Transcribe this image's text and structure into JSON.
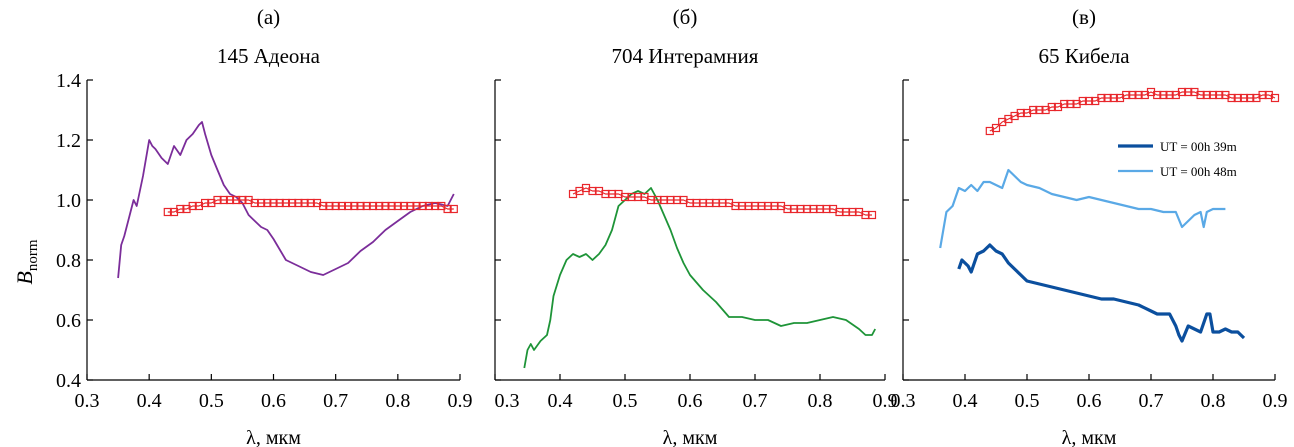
{
  "figure": {
    "ylabel_main": "B",
    "ylabel_sub": "norm",
    "xlabel": "λ, мкм",
    "ytick_labels": [
      "0.4",
      "0.6",
      "0.8",
      "1.0",
      "1.2",
      "1.4"
    ],
    "panels": [
      {
        "tag": "(а)",
        "title": "145 Адеона",
        "xtick_labels": [
          "0.3",
          "0.4",
          "0.5",
          "0.6",
          "0.7",
          "0.8",
          "0.9"
        ]
      },
      {
        "tag": "(б)",
        "title": "704 Интерамния",
        "xtick_labels": [
          "",
          "0.4",
          "0.5",
          "0.6",
          "0.7",
          "0.8",
          "0.9"
        ]
      },
      {
        "tag": "(в)",
        "title": "65 Кибела",
        "xtick_labels": [
          "0.3",
          "0.4",
          "0.5",
          "0.6",
          "0.7",
          "0.8",
          "0.9"
        ]
      }
    ],
    "extra_tick": "0.3",
    "legend": [
      {
        "label": "UT = 00h 39m",
        "color": "#0b4f9e"
      },
      {
        "label": "UT = 00h 48m",
        "color": "#5aa9e6"
      }
    ]
  },
  "chart_data": [
    {
      "type": "line",
      "title": "145 Адеона",
      "xlabel": "λ, мкм",
      "ylabel": "Bnorm",
      "xlim": [
        0.3,
        0.9
      ],
      "ylim": [
        0.4,
        1.4
      ],
      "series": [
        {
          "color": "#7b2d9a",
          "marker": "none",
          "x": [
            0.35,
            0.355,
            0.36,
            0.37,
            0.375,
            0.38,
            0.39,
            0.4,
            0.405,
            0.41,
            0.42,
            0.43,
            0.44,
            0.45,
            0.46,
            0.47,
            0.48,
            0.485,
            0.49,
            0.5,
            0.51,
            0.52,
            0.53,
            0.54,
            0.55,
            0.56,
            0.57,
            0.58,
            0.59,
            0.6,
            0.62,
            0.64,
            0.66,
            0.68,
            0.7,
            0.72,
            0.74,
            0.76,
            0.78,
            0.8,
            0.82,
            0.84,
            0.86,
            0.88,
            0.89
          ],
          "y": [
            0.74,
            0.85,
            0.88,
            0.96,
            1.0,
            0.98,
            1.08,
            1.2,
            1.18,
            1.17,
            1.14,
            1.12,
            1.18,
            1.15,
            1.2,
            1.22,
            1.25,
            1.26,
            1.22,
            1.15,
            1.1,
            1.05,
            1.02,
            1.01,
            0.99,
            0.95,
            0.93,
            0.91,
            0.9,
            0.87,
            0.8,
            0.78,
            0.76,
            0.75,
            0.77,
            0.79,
            0.83,
            0.86,
            0.9,
            0.93,
            0.96,
            0.98,
            0.99,
            0.98,
            1.02
          ]
        },
        {
          "color": "#e8262b",
          "marker": "square",
          "x": [
            0.43,
            0.44,
            0.45,
            0.46,
            0.47,
            0.48,
            0.49,
            0.5,
            0.51,
            0.52,
            0.53,
            0.54,
            0.55,
            0.56,
            0.57,
            0.58,
            0.59,
            0.6,
            0.61,
            0.62,
            0.63,
            0.64,
            0.65,
            0.66,
            0.67,
            0.68,
            0.69,
            0.7,
            0.71,
            0.72,
            0.73,
            0.74,
            0.75,
            0.76,
            0.77,
            0.78,
            0.79,
            0.8,
            0.81,
            0.82,
            0.83,
            0.84,
            0.85,
            0.86,
            0.87,
            0.88,
            0.89
          ],
          "y": [
            0.96,
            0.96,
            0.97,
            0.97,
            0.98,
            0.98,
            0.99,
            0.99,
            1.0,
            1.0,
            1.0,
            1.0,
            1.0,
            1.0,
            0.99,
            0.99,
            0.99,
            0.99,
            0.99,
            0.99,
            0.99,
            0.99,
            0.99,
            0.99,
            0.99,
            0.98,
            0.98,
            0.98,
            0.98,
            0.98,
            0.98,
            0.98,
            0.98,
            0.98,
            0.98,
            0.98,
            0.98,
            0.98,
            0.98,
            0.98,
            0.98,
            0.98,
            0.98,
            0.98,
            0.98,
            0.97,
            0.97
          ]
        }
      ]
    },
    {
      "type": "line",
      "title": "704 Интерамния",
      "xlabel": "λ, мкм",
      "xlim": [
        0.3,
        0.9
      ],
      "ylim": [
        0.4,
        1.4
      ],
      "series": [
        {
          "color": "#1e9438",
          "marker": "none",
          "x": [
            0.345,
            0.35,
            0.355,
            0.36,
            0.37,
            0.38,
            0.385,
            0.39,
            0.4,
            0.41,
            0.42,
            0.43,
            0.44,
            0.45,
            0.46,
            0.47,
            0.48,
            0.49,
            0.5,
            0.51,
            0.52,
            0.53,
            0.54,
            0.55,
            0.56,
            0.57,
            0.58,
            0.59,
            0.6,
            0.62,
            0.64,
            0.66,
            0.68,
            0.7,
            0.72,
            0.74,
            0.76,
            0.78,
            0.8,
            0.82,
            0.84,
            0.86,
            0.87,
            0.88,
            0.885
          ],
          "y": [
            0.44,
            0.5,
            0.52,
            0.5,
            0.53,
            0.55,
            0.6,
            0.68,
            0.75,
            0.8,
            0.82,
            0.81,
            0.82,
            0.8,
            0.82,
            0.85,
            0.9,
            0.98,
            1.0,
            1.02,
            1.03,
            1.02,
            1.04,
            1.0,
            0.95,
            0.9,
            0.84,
            0.79,
            0.75,
            0.7,
            0.66,
            0.61,
            0.61,
            0.6,
            0.6,
            0.58,
            0.59,
            0.59,
            0.6,
            0.61,
            0.6,
            0.57,
            0.55,
            0.55,
            0.57
          ]
        },
        {
          "color": "#e8262b",
          "marker": "square",
          "x": [
            0.42,
            0.43,
            0.44,
            0.45,
            0.46,
            0.47,
            0.48,
            0.49,
            0.5,
            0.51,
            0.52,
            0.53,
            0.54,
            0.55,
            0.56,
            0.57,
            0.58,
            0.59,
            0.6,
            0.61,
            0.62,
            0.63,
            0.64,
            0.65,
            0.66,
            0.67,
            0.68,
            0.69,
            0.7,
            0.71,
            0.72,
            0.73,
            0.74,
            0.75,
            0.76,
            0.77,
            0.78,
            0.79,
            0.8,
            0.81,
            0.82,
            0.83,
            0.84,
            0.85,
            0.86,
            0.87,
            0.88
          ],
          "y": [
            1.02,
            1.03,
            1.04,
            1.03,
            1.03,
            1.02,
            1.02,
            1.02,
            1.01,
            1.01,
            1.01,
            1.01,
            1.0,
            1.0,
            1.0,
            1.0,
            1.0,
            1.0,
            0.99,
            0.99,
            0.99,
            0.99,
            0.99,
            0.99,
            0.99,
            0.98,
            0.98,
            0.98,
            0.98,
            0.98,
            0.98,
            0.98,
            0.98,
            0.97,
            0.97,
            0.97,
            0.97,
            0.97,
            0.97,
            0.97,
            0.97,
            0.96,
            0.96,
            0.96,
            0.96,
            0.95,
            0.95
          ]
        }
      ]
    },
    {
      "type": "line",
      "title": "65 Кибела",
      "xlabel": "λ, мкм",
      "xlim": [
        0.3,
        0.9
      ],
      "ylim": [
        0.4,
        1.4
      ],
      "series": [
        {
          "color": "#e8262b",
          "marker": "square",
          "x": [
            0.44,
            0.45,
            0.46,
            0.47,
            0.48,
            0.49,
            0.5,
            0.51,
            0.52,
            0.53,
            0.54,
            0.55,
            0.56,
            0.57,
            0.58,
            0.59,
            0.6,
            0.61,
            0.62,
            0.63,
            0.64,
            0.65,
            0.66,
            0.67,
            0.68,
            0.69,
            0.7,
            0.71,
            0.72,
            0.73,
            0.74,
            0.75,
            0.76,
            0.77,
            0.78,
            0.79,
            0.8,
            0.81,
            0.82,
            0.83,
            0.84,
            0.85,
            0.86,
            0.87,
            0.88,
            0.89,
            0.9
          ],
          "y": [
            1.23,
            1.24,
            1.26,
            1.27,
            1.28,
            1.29,
            1.29,
            1.3,
            1.3,
            1.3,
            1.31,
            1.31,
            1.32,
            1.32,
            1.32,
            1.33,
            1.33,
            1.33,
            1.34,
            1.34,
            1.34,
            1.34,
            1.35,
            1.35,
            1.35,
            1.35,
            1.36,
            1.35,
            1.35,
            1.35,
            1.35,
            1.36,
            1.36,
            1.36,
            1.35,
            1.35,
            1.35,
            1.35,
            1.35,
            1.34,
            1.34,
            1.34,
            1.34,
            1.34,
            1.35,
            1.35,
            1.34
          ]
        },
        {
          "name": "UT = 00h 48m",
          "color": "#5aa9e6",
          "marker": "none",
          "x": [
            0.36,
            0.365,
            0.37,
            0.38,
            0.39,
            0.4,
            0.41,
            0.42,
            0.43,
            0.44,
            0.45,
            0.46,
            0.47,
            0.48,
            0.49,
            0.5,
            0.52,
            0.54,
            0.56,
            0.58,
            0.6,
            0.62,
            0.64,
            0.66,
            0.68,
            0.7,
            0.72,
            0.74,
            0.75,
            0.76,
            0.77,
            0.78,
            0.785,
            0.79,
            0.8,
            0.81,
            0.82
          ],
          "y": [
            0.84,
            0.9,
            0.96,
            0.98,
            1.04,
            1.03,
            1.05,
            1.03,
            1.06,
            1.06,
            1.05,
            1.04,
            1.1,
            1.08,
            1.06,
            1.05,
            1.04,
            1.02,
            1.01,
            1.0,
            1.01,
            1.0,
            0.99,
            0.98,
            0.97,
            0.97,
            0.96,
            0.96,
            0.91,
            0.93,
            0.95,
            0.96,
            0.91,
            0.96,
            0.97,
            0.97,
            0.97
          ]
        },
        {
          "name": "UT = 00h 39m",
          "color": "#0b4f9e",
          "marker": "none",
          "x": [
            0.39,
            0.395,
            0.4,
            0.405,
            0.41,
            0.42,
            0.43,
            0.44,
            0.45,
            0.46,
            0.47,
            0.48,
            0.49,
            0.5,
            0.52,
            0.54,
            0.56,
            0.58,
            0.6,
            0.62,
            0.64,
            0.66,
            0.68,
            0.7,
            0.71,
            0.72,
            0.73,
            0.74,
            0.745,
            0.75,
            0.76,
            0.77,
            0.78,
            0.79,
            0.795,
            0.8,
            0.81,
            0.82,
            0.83,
            0.84,
            0.85
          ],
          "y": [
            0.77,
            0.8,
            0.79,
            0.78,
            0.76,
            0.82,
            0.83,
            0.85,
            0.83,
            0.82,
            0.79,
            0.77,
            0.75,
            0.73,
            0.72,
            0.71,
            0.7,
            0.69,
            0.68,
            0.67,
            0.67,
            0.66,
            0.65,
            0.63,
            0.62,
            0.62,
            0.62,
            0.58,
            0.55,
            0.53,
            0.58,
            0.57,
            0.56,
            0.62,
            0.62,
            0.56,
            0.56,
            0.57,
            0.56,
            0.56,
            0.54
          ]
        }
      ]
    }
  ]
}
